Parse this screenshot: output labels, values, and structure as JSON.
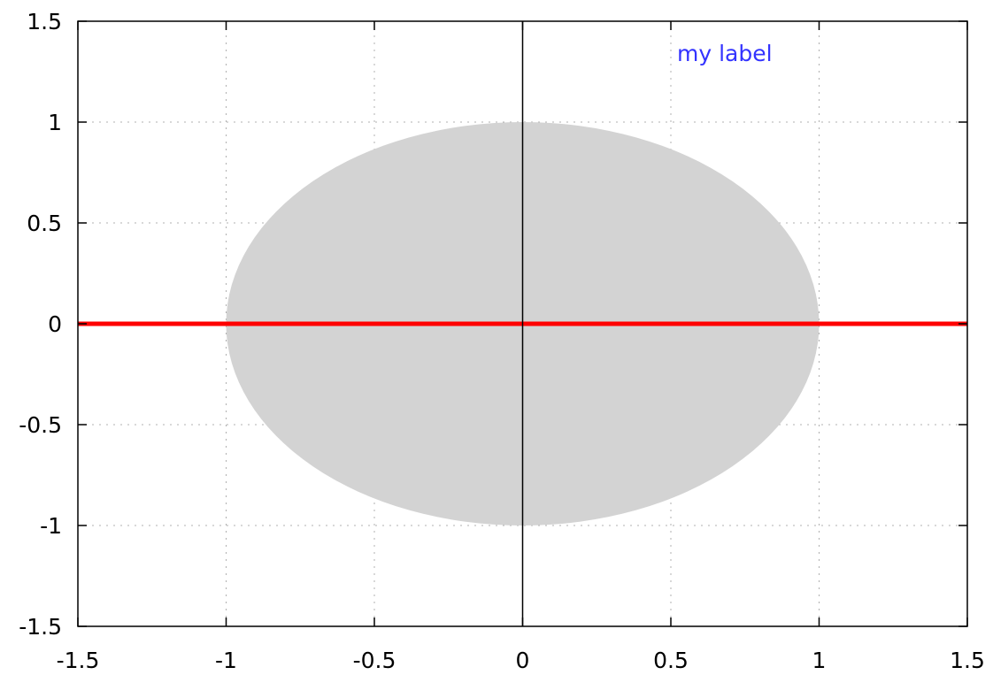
{
  "chart_data": {
    "type": "area",
    "title": "",
    "xlabel": "",
    "ylabel": "",
    "xlim": [
      -1.5,
      1.5
    ],
    "ylim": [
      -1.5,
      1.5
    ],
    "grid": true,
    "xticks": [
      -1.5,
      -1,
      -0.5,
      0,
      0.5,
      1,
      1.5
    ],
    "yticks": [
      -1.5,
      -1,
      -0.5,
      0,
      0.5,
      1,
      1.5
    ],
    "xtick_labels": [
      "-1.5",
      "-1",
      "-0.5",
      "0",
      "0.5",
      "1",
      "1.5"
    ],
    "ytick_labels": [
      "-1.5",
      "-1",
      "-0.5",
      "0",
      "0.5",
      "1",
      "1.5"
    ],
    "series": [
      {
        "kind": "filled-region",
        "shape": "unit-circle",
        "center": [
          0,
          0
        ],
        "radius": 1,
        "color": "#d3d3d3"
      },
      {
        "kind": "line",
        "x": [
          -1.5,
          1.5
        ],
        "y": [
          0,
          0
        ],
        "color": "#ff0000"
      },
      {
        "kind": "line",
        "x": [
          0,
          0
        ],
        "y": [
          -1.5,
          1.5
        ],
        "color": "#000000"
      }
    ],
    "annotations": [
      {
        "text": "my label",
        "x": 0.7,
        "y": 1.33,
        "color": "#3333ff"
      }
    ]
  }
}
